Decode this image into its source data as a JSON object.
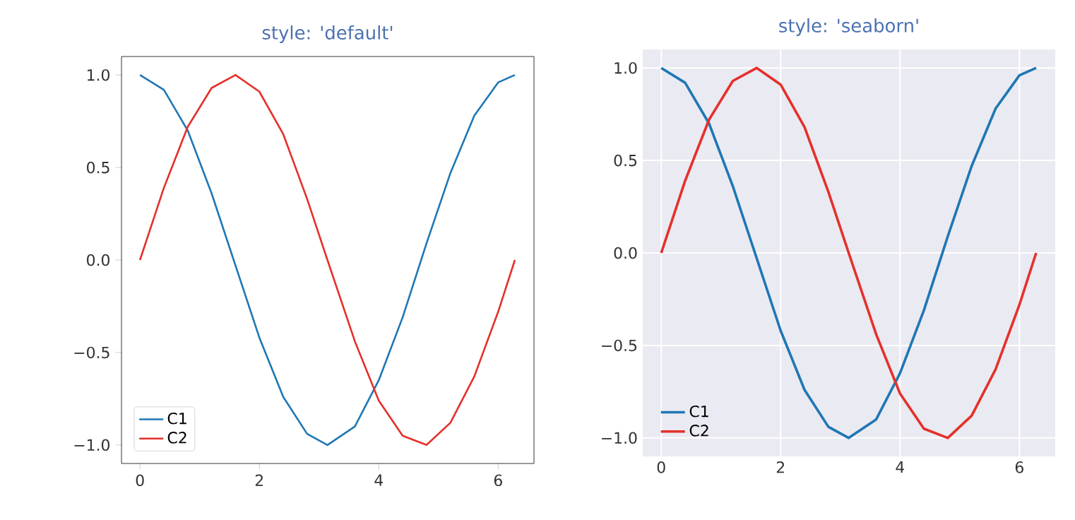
{
  "chart_data": [
    {
      "type": "line",
      "title": "style: 'default'",
      "x": [
        0,
        0.4,
        0.8,
        1.2,
        1.6,
        2.0,
        2.4,
        2.8,
        3.14,
        3.6,
        4.0,
        4.4,
        4.8,
        5.2,
        5.6,
        6.0,
        6.28
      ],
      "series": [
        {
          "name": "C1",
          "color": "#1f77b4",
          "values": [
            1.0,
            0.92,
            0.7,
            0.36,
            -0.03,
            -0.42,
            -0.74,
            -0.94,
            -1.0,
            -0.9,
            -0.65,
            -0.31,
            0.09,
            0.47,
            0.78,
            0.96,
            1.0
          ]
        },
        {
          "name": "C2",
          "color": "#e5302b",
          "values": [
            0.0,
            0.39,
            0.72,
            0.93,
            1.0,
            0.91,
            0.68,
            0.33,
            0.0,
            -0.44,
            -0.76,
            -0.95,
            -1.0,
            -0.88,
            -0.63,
            -0.28,
            0.0
          ]
        }
      ],
      "xlim": [
        -0.31,
        6.6
      ],
      "ylim": [
        -1.1,
        1.1
      ],
      "xticks": [
        0,
        2,
        4,
        6
      ],
      "yticks": [
        {
          "value": -1,
          "label": "−1.0"
        },
        {
          "value": -0.5,
          "label": "−0.5"
        },
        {
          "value": 0,
          "label": "0.0"
        },
        {
          "value": 0.5,
          "label": "0.5"
        },
        {
          "value": 1,
          "label": "1.0"
        }
      ],
      "legend": "bottom left",
      "grid": false
    },
    {
      "type": "line",
      "title": "style: 'seaborn'",
      "x": [
        0,
        0.4,
        0.8,
        1.2,
        1.6,
        2.0,
        2.4,
        2.8,
        3.14,
        3.6,
        4.0,
        4.4,
        4.8,
        5.2,
        5.6,
        6.0,
        6.28
      ],
      "series": [
        {
          "name": "C1",
          "color": "#1f77b4",
          "values": [
            1.0,
            0.92,
            0.7,
            0.36,
            -0.03,
            -0.42,
            -0.74,
            -0.94,
            -1.0,
            -0.9,
            -0.65,
            -0.31,
            0.09,
            0.47,
            0.78,
            0.96,
            1.0
          ]
        },
        {
          "name": "C2",
          "color": "#e5302b",
          "values": [
            0.0,
            0.39,
            0.72,
            0.93,
            1.0,
            0.91,
            0.68,
            0.33,
            0.0,
            -0.44,
            -0.76,
            -0.95,
            -1.0,
            -0.88,
            -0.63,
            -0.28,
            0.0
          ]
        }
      ],
      "xlim": [
        -0.31,
        6.6
      ],
      "ylim": [
        -1.1,
        1.1
      ],
      "xticks": [
        0,
        2,
        4,
        6
      ],
      "yticks": [
        {
          "value": -1,
          "label": "−1.0"
        },
        {
          "value": -0.5,
          "label": "−0.5"
        },
        {
          "value": 0,
          "label": "0.0"
        },
        {
          "value": 0.5,
          "label": "0.5"
        },
        {
          "value": 1,
          "label": "1.0"
        }
      ],
      "legend": "bottom left",
      "grid": true
    }
  ]
}
